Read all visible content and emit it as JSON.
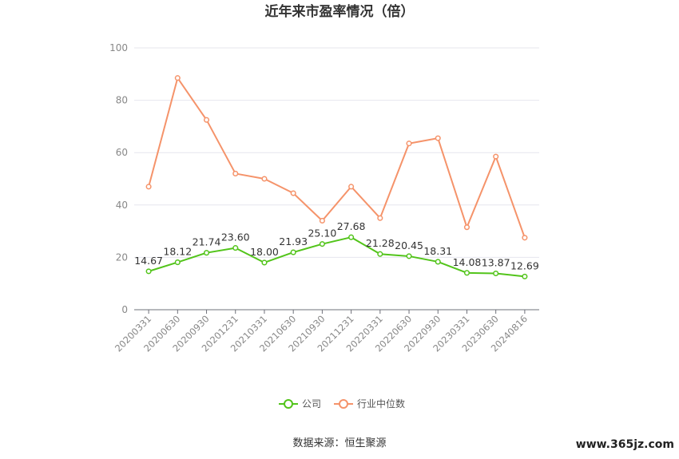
{
  "chart_data": {
    "type": "line",
    "title": "近年来市盈率情况（倍）",
    "categories": [
      "20200331",
      "20200630",
      "20200930",
      "20201231",
      "20210331",
      "20210630",
      "20210930",
      "20211231",
      "20220331",
      "20220630",
      "20220930",
      "20230331",
      "20230630",
      "20240816"
    ],
    "ylim": [
      0,
      100
    ],
    "yticks": [
      0,
      20,
      40,
      60,
      80,
      100
    ],
    "grid": true,
    "legend_position": "bottom",
    "series": [
      {
        "name": "公司",
        "color": "#52c41a",
        "values": [
          14.67,
          18.12,
          21.74,
          23.6,
          18.0,
          21.93,
          25.1,
          27.68,
          21.28,
          20.45,
          18.31,
          14.08,
          13.87,
          12.69
        ],
        "labels": [
          "14.67",
          "18.12",
          "21.74",
          "23.60",
          "18.00",
          "21.93",
          "25.10",
          "27.68",
          "21.28",
          "20.45",
          "18.31",
          "14.08",
          "13.87",
          "12.69"
        ]
      },
      {
        "name": "行业中位数",
        "color": "#f5936a",
        "values": [
          47.0,
          88.5,
          72.5,
          52.0,
          50.0,
          44.5,
          34.0,
          47.0,
          35.0,
          63.5,
          65.5,
          31.5,
          58.5,
          27.5
        ]
      }
    ]
  },
  "source": "数据来源：恒生聚源",
  "watermark": "www.365jz.com"
}
